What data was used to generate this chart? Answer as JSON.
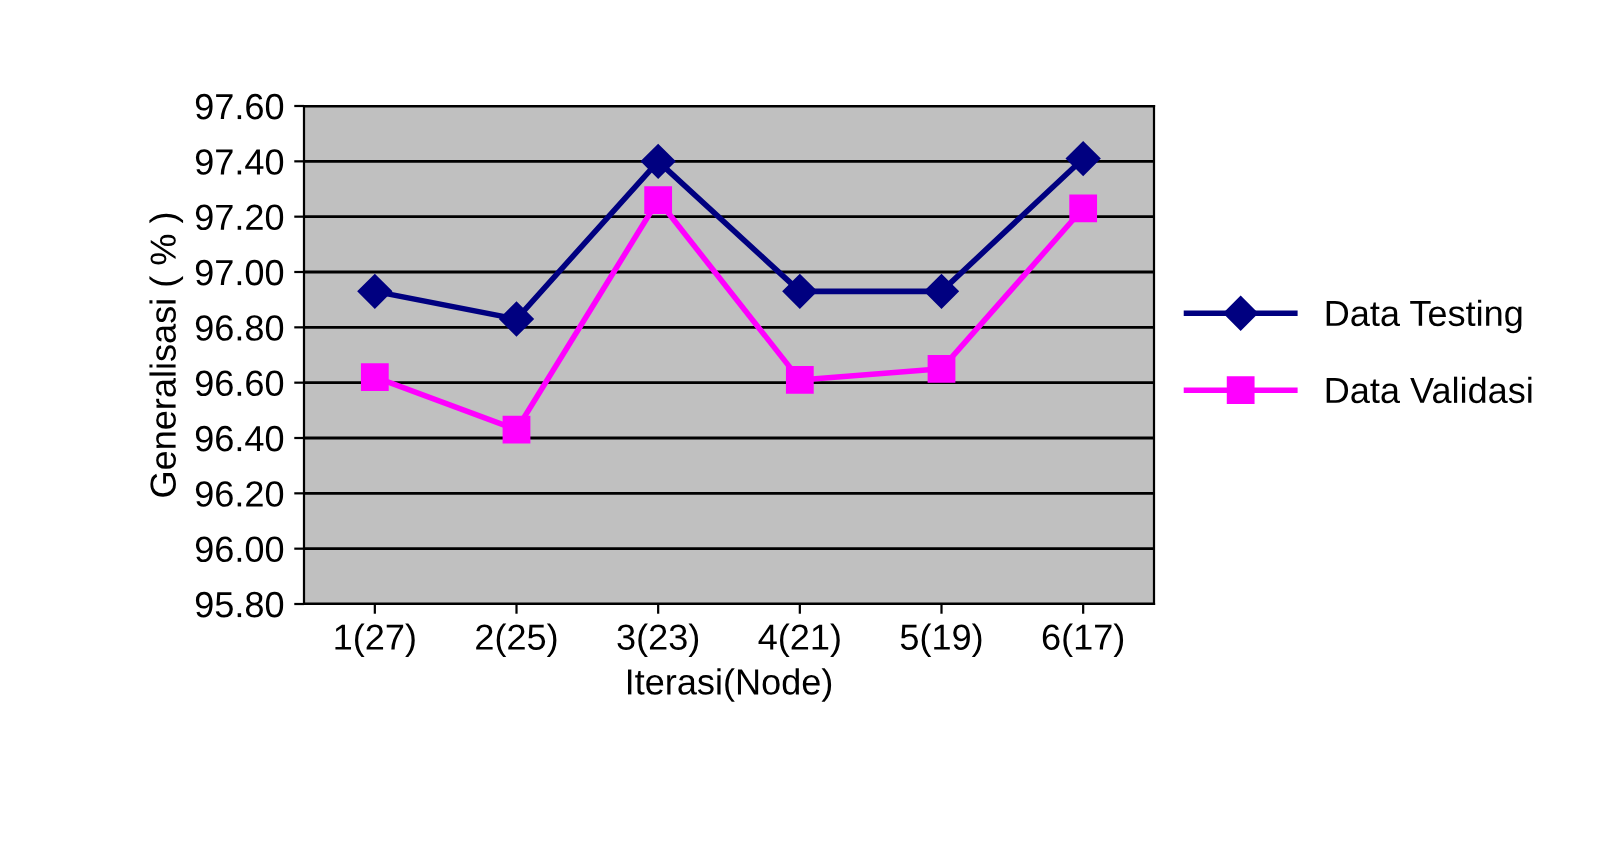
{
  "chart_data": {
    "type": "line",
    "xlabel": "Iterasi(Node)",
    "ylabel": "Generalisasi ( % )",
    "categories": [
      "1(27)",
      "2(25)",
      "3(23)",
      "4(21)",
      "5(19)",
      "6(17)"
    ],
    "series": [
      {
        "name": "Data Testing",
        "color": "#000080",
        "marker": "diamond",
        "values": [
          96.93,
          96.83,
          97.4,
          96.93,
          96.93,
          97.41
        ]
      },
      {
        "name": "Data Validasi",
        "color": "#ff00ff",
        "marker": "square",
        "values": [
          96.62,
          96.43,
          97.26,
          96.61,
          96.65,
          97.23
        ]
      }
    ],
    "ylim": [
      95.8,
      97.6
    ],
    "yticks": [
      {
        "value": 95.8,
        "label": "95.80"
      },
      {
        "value": 96.0,
        "label": "96.00"
      },
      {
        "value": 96.2,
        "label": "96.20"
      },
      {
        "value": 96.4,
        "label": "96.40"
      },
      {
        "value": 96.6,
        "label": "96.60"
      },
      {
        "value": 96.8,
        "label": "96.80"
      },
      {
        "value": 97.0,
        "label": "97.00"
      },
      {
        "value": 97.2,
        "label": "97.20"
      },
      {
        "value": 97.4,
        "label": "97.40"
      },
      {
        "value": 97.6,
        "label": "97.60"
      }
    ],
    "grid": "y",
    "legend": "right"
  }
}
